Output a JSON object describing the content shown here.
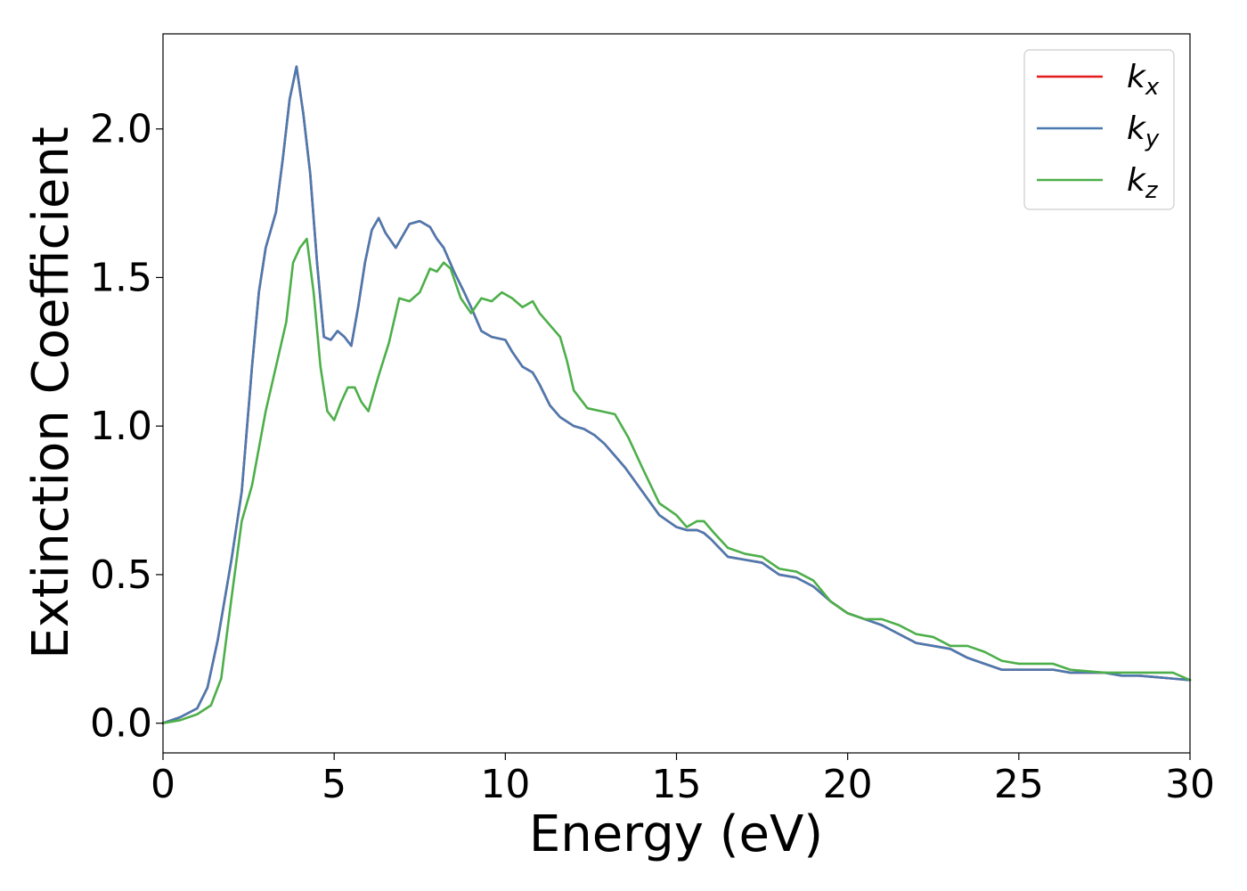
{
  "chart_data": {
    "type": "line",
    "title": "",
    "xlabel": "Energy (eV)",
    "ylabel": "Extinction Coefficient",
    "xlim": [
      0,
      30
    ],
    "ylim": [
      -0.1,
      2.32
    ],
    "xticks": [
      0,
      5,
      10,
      15,
      20,
      25,
      30
    ],
    "xtick_labels": [
      "0",
      "5",
      "10",
      "15",
      "20",
      "25",
      "30"
    ],
    "yticks": [
      0.0,
      0.5,
      1.0,
      1.5,
      2.0
    ],
    "ytick_labels": [
      "0.0",
      "0.5",
      "1.0",
      "1.5",
      "2.0"
    ],
    "grid": false,
    "legend_position": "top-right",
    "series": [
      {
        "name": "k_x",
        "legend_base": "k",
        "legend_sub": "x",
        "color": "#e41a1c",
        "x": [
          0,
          0.5,
          1.0,
          1.3,
          1.6,
          2.0,
          2.3,
          2.6,
          2.8,
          3.0,
          3.3,
          3.5,
          3.7,
          3.9,
          4.1,
          4.3,
          4.5,
          4.7,
          4.9,
          5.1,
          5.3,
          5.5,
          5.7,
          5.9,
          6.1,
          6.3,
          6.5,
          6.8,
          7.0,
          7.2,
          7.5,
          7.8,
          8.0,
          8.2,
          8.5,
          8.8,
          9.0,
          9.3,
          9.6,
          10.0,
          10.2,
          10.5,
          10.8,
          11.0,
          11.3,
          11.6,
          12.0,
          12.3,
          12.6,
          12.9,
          13.2,
          13.5,
          14.0,
          14.5,
          15.0,
          15.3,
          15.6,
          15.8,
          16.0,
          16.5,
          17.0,
          17.5,
          18.0,
          18.5,
          19.0,
          19.5,
          20.0,
          20.5,
          21.0,
          21.5,
          22.0,
          22.5,
          23.0,
          23.5,
          24.0,
          24.5,
          25.0,
          25.5,
          26.0,
          26.5,
          27.0,
          27.5,
          28.0,
          28.5,
          29.0,
          29.5,
          30.0
        ],
        "values": [
          0.0,
          0.02,
          0.05,
          0.12,
          0.28,
          0.55,
          0.78,
          1.2,
          1.45,
          1.6,
          1.72,
          1.9,
          2.1,
          2.21,
          2.05,
          1.85,
          1.55,
          1.3,
          1.29,
          1.32,
          1.3,
          1.27,
          1.4,
          1.55,
          1.66,
          1.7,
          1.65,
          1.6,
          1.64,
          1.68,
          1.69,
          1.67,
          1.63,
          1.6,
          1.52,
          1.45,
          1.4,
          1.32,
          1.3,
          1.29,
          1.25,
          1.2,
          1.18,
          1.14,
          1.07,
          1.03,
          1.0,
          0.99,
          0.97,
          0.94,
          0.9,
          0.86,
          0.78,
          0.7,
          0.66,
          0.65,
          0.65,
          0.64,
          0.62,
          0.56,
          0.55,
          0.54,
          0.5,
          0.49,
          0.46,
          0.41,
          0.37,
          0.35,
          0.33,
          0.3,
          0.27,
          0.26,
          0.25,
          0.22,
          0.2,
          0.18,
          0.18,
          0.18,
          0.18,
          0.17,
          0.17,
          0.17,
          0.16,
          0.16,
          0.155,
          0.15,
          0.145
        ]
      },
      {
        "name": "k_y",
        "legend_base": "k",
        "legend_sub": "y",
        "color": "#4a7ab0",
        "x": [
          0,
          0.5,
          1.0,
          1.3,
          1.6,
          2.0,
          2.3,
          2.6,
          2.8,
          3.0,
          3.3,
          3.5,
          3.7,
          3.9,
          4.1,
          4.3,
          4.5,
          4.7,
          4.9,
          5.1,
          5.3,
          5.5,
          5.7,
          5.9,
          6.1,
          6.3,
          6.5,
          6.8,
          7.0,
          7.2,
          7.5,
          7.8,
          8.0,
          8.2,
          8.5,
          8.8,
          9.0,
          9.3,
          9.6,
          10.0,
          10.2,
          10.5,
          10.8,
          11.0,
          11.3,
          11.6,
          12.0,
          12.3,
          12.6,
          12.9,
          13.2,
          13.5,
          14.0,
          14.5,
          15.0,
          15.3,
          15.6,
          15.8,
          16.0,
          16.5,
          17.0,
          17.5,
          18.0,
          18.5,
          19.0,
          19.5,
          20.0,
          20.5,
          21.0,
          21.5,
          22.0,
          22.5,
          23.0,
          23.5,
          24.0,
          24.5,
          25.0,
          25.5,
          26.0,
          26.5,
          27.0,
          27.5,
          28.0,
          28.5,
          29.0,
          29.5,
          30.0
        ],
        "values": [
          0.0,
          0.02,
          0.05,
          0.12,
          0.28,
          0.55,
          0.78,
          1.2,
          1.45,
          1.6,
          1.72,
          1.9,
          2.1,
          2.21,
          2.05,
          1.85,
          1.55,
          1.3,
          1.29,
          1.32,
          1.3,
          1.27,
          1.4,
          1.55,
          1.66,
          1.7,
          1.65,
          1.6,
          1.64,
          1.68,
          1.69,
          1.67,
          1.63,
          1.6,
          1.52,
          1.45,
          1.4,
          1.32,
          1.3,
          1.29,
          1.25,
          1.2,
          1.18,
          1.14,
          1.07,
          1.03,
          1.0,
          0.99,
          0.97,
          0.94,
          0.9,
          0.86,
          0.78,
          0.7,
          0.66,
          0.65,
          0.65,
          0.64,
          0.62,
          0.56,
          0.55,
          0.54,
          0.5,
          0.49,
          0.46,
          0.41,
          0.37,
          0.35,
          0.33,
          0.3,
          0.27,
          0.26,
          0.25,
          0.22,
          0.2,
          0.18,
          0.18,
          0.18,
          0.18,
          0.17,
          0.17,
          0.17,
          0.16,
          0.16,
          0.155,
          0.15,
          0.145
        ]
      },
      {
        "name": "k_z",
        "legend_base": "k",
        "legend_sub": "z",
        "color": "#4daf4a",
        "x": [
          0,
          0.5,
          1.0,
          1.4,
          1.7,
          2.0,
          2.3,
          2.6,
          3.0,
          3.3,
          3.6,
          3.8,
          4.0,
          4.2,
          4.4,
          4.6,
          4.8,
          5.0,
          5.2,
          5.4,
          5.6,
          5.8,
          6.0,
          6.3,
          6.6,
          6.9,
          7.2,
          7.5,
          7.8,
          8.0,
          8.2,
          8.4,
          8.7,
          9.0,
          9.3,
          9.6,
          9.9,
          10.2,
          10.5,
          10.8,
          11.0,
          11.3,
          11.6,
          11.8,
          12.0,
          12.4,
          12.8,
          13.2,
          13.6,
          14.0,
          14.5,
          15.0,
          15.3,
          15.6,
          15.8,
          16.1,
          16.5,
          17.0,
          17.5,
          18.0,
          18.5,
          19.0,
          19.5,
          20.0,
          20.5,
          21.0,
          21.5,
          22.0,
          22.5,
          23.0,
          23.5,
          24.0,
          24.5,
          25.0,
          25.5,
          26.0,
          26.5,
          27.0,
          27.5,
          28.0,
          28.5,
          29.0,
          29.5,
          30.0
        ],
        "values": [
          0.0,
          0.01,
          0.03,
          0.06,
          0.15,
          0.42,
          0.68,
          0.8,
          1.05,
          1.2,
          1.35,
          1.55,
          1.6,
          1.63,
          1.45,
          1.2,
          1.05,
          1.02,
          1.08,
          1.13,
          1.13,
          1.08,
          1.05,
          1.17,
          1.28,
          1.43,
          1.42,
          1.45,
          1.53,
          1.52,
          1.55,
          1.53,
          1.43,
          1.38,
          1.43,
          1.42,
          1.45,
          1.43,
          1.4,
          1.42,
          1.38,
          1.34,
          1.3,
          1.22,
          1.12,
          1.06,
          1.05,
          1.04,
          0.96,
          0.86,
          0.74,
          0.7,
          0.66,
          0.68,
          0.68,
          0.64,
          0.59,
          0.57,
          0.56,
          0.52,
          0.51,
          0.48,
          0.41,
          0.37,
          0.35,
          0.35,
          0.33,
          0.3,
          0.29,
          0.26,
          0.26,
          0.24,
          0.21,
          0.2,
          0.2,
          0.2,
          0.18,
          0.175,
          0.17,
          0.17,
          0.17,
          0.17,
          0.17,
          0.145
        ]
      }
    ]
  }
}
